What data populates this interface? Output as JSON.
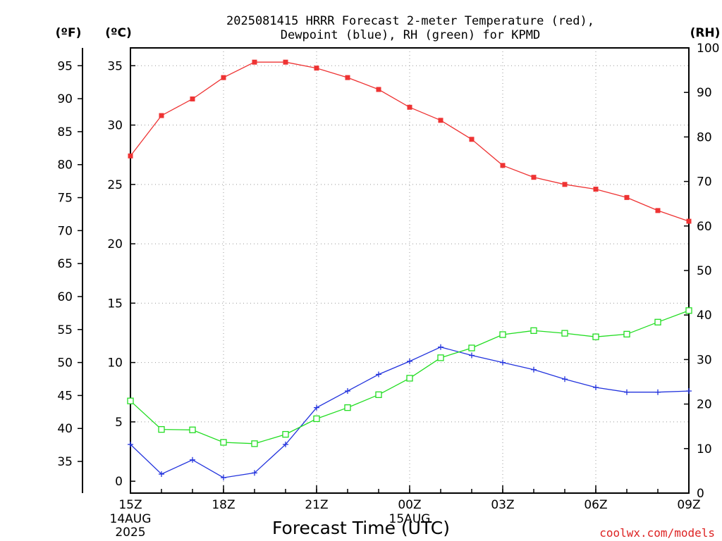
{
  "chart_data": {
    "type": "line",
    "title_line1": "2025081415 HRRR Forecast 2-meter Temperature (red),",
    "title_line2": "Dewpoint (blue), RH (green) for KPMD",
    "xlabel": "Forecast Time (UTC)",
    "credit": "coolwx.com/models",
    "units": {
      "fahrenheit": "(ºF)",
      "celsius": "(ºC)",
      "rh": "(RH)"
    },
    "x_hours": [
      0,
      1,
      2,
      3,
      4,
      5,
      6,
      7,
      8,
      9,
      10,
      11,
      12,
      13,
      14,
      15,
      16,
      17,
      18
    ],
    "x_ticks": [
      {
        "hour": 0,
        "label": "15Z",
        "sub1": "14AUG",
        "sub2": "2025"
      },
      {
        "hour": 3,
        "label": "18Z",
        "sub1": "",
        "sub2": ""
      },
      {
        "hour": 6,
        "label": "21Z",
        "sub1": "",
        "sub2": ""
      },
      {
        "hour": 9,
        "label": "00Z",
        "sub1": "15AUG",
        "sub2": ""
      },
      {
        "hour": 12,
        "label": "03Z",
        "sub1": "",
        "sub2": ""
      },
      {
        "hour": 15,
        "label": "06Z",
        "sub1": "",
        "sub2": ""
      },
      {
        "hour": 18,
        "label": "09Z",
        "sub1": "",
        "sub2": ""
      }
    ],
    "celsius_range": [
      -1,
      36.5
    ],
    "celsius_ticks": [
      "0",
      "5",
      "10",
      "15",
      "20",
      "25",
      "30",
      "35"
    ],
    "fahrenheit_ticks": [
      "35",
      "40",
      "45",
      "50",
      "55",
      "60",
      "65",
      "70",
      "75",
      "80",
      "85",
      "90",
      "95"
    ],
    "rh_range": [
      0,
      100
    ],
    "rh_ticks": [
      "0",
      "10",
      "20",
      "30",
      "40",
      "50",
      "60",
      "70",
      "80",
      "90",
      "100"
    ],
    "grid": true,
    "series": [
      {
        "key": "temperature",
        "color": "#ee3333",
        "marker": "filled-square",
        "values_c": [
          27.4,
          30.8,
          32.2,
          34.0,
          35.3,
          35.3,
          34.8,
          34.0,
          33.0,
          31.5,
          30.4,
          28.8,
          26.6,
          25.6,
          25.0,
          24.6,
          23.9,
          22.8,
          21.9
        ]
      },
      {
        "key": "dewpoint",
        "color": "#2233dd",
        "marker": "plus",
        "values_c": [
          3.1,
          0.6,
          1.8,
          0.3,
          0.7,
          3.1,
          6.2,
          7.6,
          9.0,
          10.1,
          11.3,
          10.6,
          10.0,
          9.4,
          8.6,
          7.9,
          7.5,
          7.5,
          7.6
        ]
      },
      {
        "key": "rh",
        "color": "#22dd22",
        "marker": "open-square",
        "values_rh": [
          20.7,
          14.3,
          14.2,
          11.4,
          11.1,
          13.2,
          16.7,
          19.2,
          22.1,
          25.8,
          30.4,
          32.6,
          35.6,
          36.5,
          35.9,
          35.1,
          35.7,
          38.4,
          41.0
        ]
      }
    ]
  }
}
